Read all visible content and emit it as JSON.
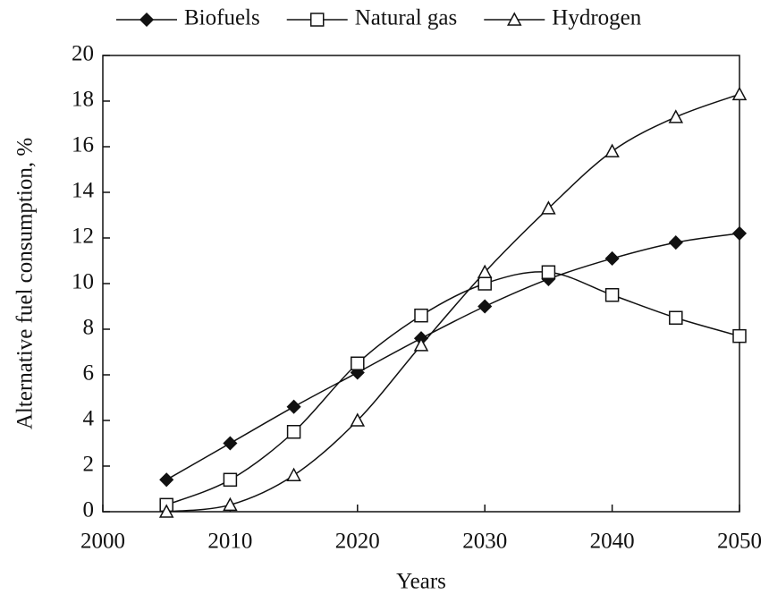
{
  "chart_data": {
    "type": "line",
    "x": [
      2005,
      2010,
      2015,
      2020,
      2025,
      2030,
      2035,
      2040,
      2045,
      2050
    ],
    "series": [
      {
        "name": "Biofuels",
        "color": "#111111",
        "marker": "diamond",
        "values": [
          1.4,
          3.0,
          4.6,
          6.1,
          7.6,
          9.0,
          10.2,
          11.1,
          11.8,
          12.2
        ]
      },
      {
        "name": "Natural gas",
        "color": "#111111",
        "marker": "square",
        "values": [
          0.3,
          1.4,
          3.5,
          6.5,
          8.6,
          10.0,
          10.5,
          9.5,
          8.5,
          7.7
        ]
      },
      {
        "name": "Hydrogen",
        "color": "#111111",
        "marker": "triangle",
        "values": [
          0.0,
          0.3,
          1.6,
          4.0,
          7.3,
          10.5,
          13.3,
          15.8,
          17.3,
          18.3
        ]
      }
    ],
    "xlabel": "Years",
    "ylabel": "Alternative fuel consumption, %",
    "xlim": [
      2000,
      2050
    ],
    "xticks": [
      2000,
      2010,
      2020,
      2030,
      2040,
      2050
    ],
    "ylim": [
      0,
      20
    ],
    "yticks": [
      0,
      2,
      4,
      6,
      8,
      10,
      12,
      14,
      16,
      18,
      20
    ],
    "legend": "top",
    "grid": false
  }
}
